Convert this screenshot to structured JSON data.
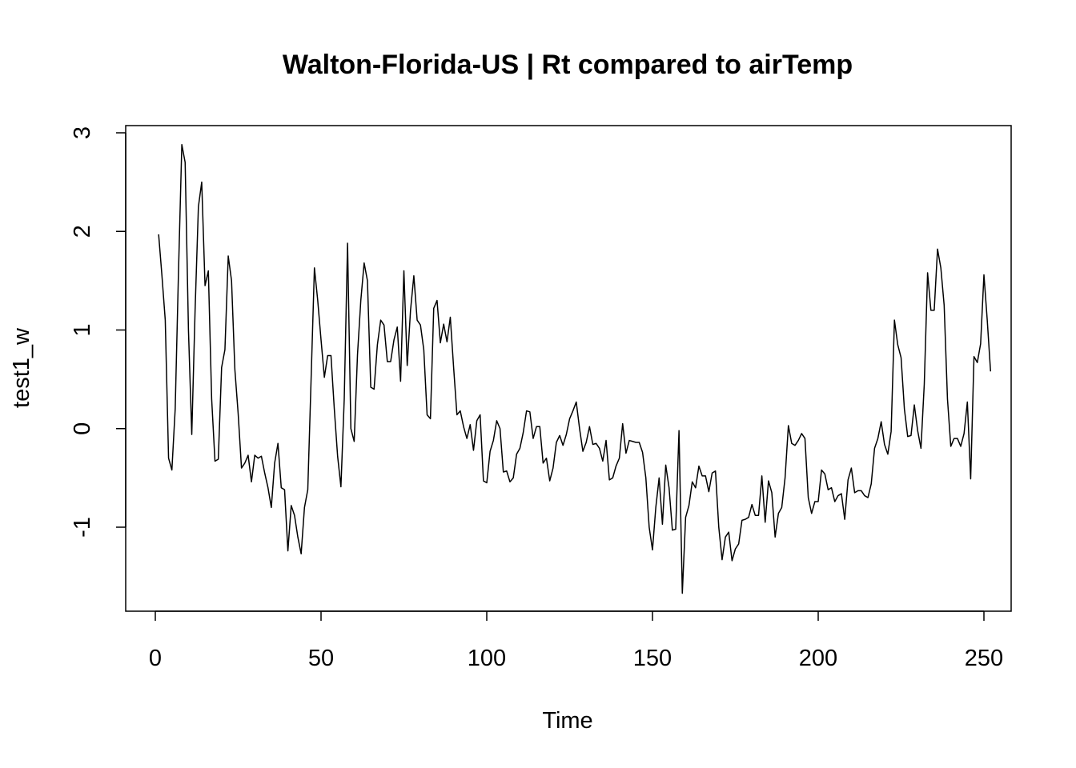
{
  "chart_data": {
    "type": "line",
    "title": "Walton-Florida-US | Rt compared to airTemp",
    "xlabel": "Time",
    "ylabel": "test1_w",
    "xlim": [
      1,
      248
    ],
    "ylim": [
      -1.65,
      2.9
    ],
    "x_ticks": [
      0,
      50,
      100,
      150,
      200,
      250
    ],
    "x_tick_labels": [
      "0",
      "50",
      "100",
      "150",
      "200",
      "250"
    ],
    "y_ticks": [
      -1,
      0,
      1,
      2,
      3
    ],
    "y_tick_labels": [
      "-1",
      "0",
      "1",
      "2",
      "3"
    ],
    "grid": false,
    "legend": "none",
    "line_color": "#000000",
    "series": [
      {
        "x_start": 1,
        "x_step": 1,
        "values": [
          1.97,
          1.55,
          1.1,
          -0.3,
          -0.42,
          0.2,
          1.6,
          2.88,
          2.7,
          1.0,
          -0.06,
          1.2,
          2.25,
          2.5,
          1.45,
          1.6,
          0.3,
          -0.33,
          -0.31,
          0.62,
          0.8,
          1.75,
          1.5,
          0.6,
          0.15,
          -0.4,
          -0.35,
          -0.27,
          -0.54,
          -0.27,
          -0.3,
          -0.28,
          -0.45,
          -0.6,
          -0.8,
          -0.35,
          -0.15,
          -0.6,
          -0.62,
          -1.24,
          -0.78,
          -0.88,
          -1.1,
          -1.27,
          -0.8,
          -0.62,
          0.5,
          1.63,
          1.3,
          0.9,
          0.52,
          0.74,
          0.74,
          0.2,
          -0.28,
          -0.59,
          0.3,
          1.88,
          0.0,
          -0.13,
          0.75,
          1.3,
          1.68,
          1.5,
          0.42,
          0.4,
          0.85,
          1.1,
          1.05,
          0.68,
          0.68,
          0.9,
          1.03,
          0.48,
          1.6,
          0.64,
          1.2,
          1.55,
          1.1,
          1.05,
          0.8,
          0.14,
          0.1,
          1.22,
          1.3,
          0.87,
          1.06,
          0.88,
          1.13,
          0.62,
          0.14,
          0.18,
          0.02,
          -0.1,
          0.04,
          -0.22,
          0.08,
          0.14,
          -0.53,
          -0.55,
          -0.23,
          -0.12,
          0.08,
          0.0,
          -0.44,
          -0.43,
          -0.54,
          -0.5,
          -0.26,
          -0.2,
          -0.04,
          0.18,
          0.17,
          -0.1,
          0.02,
          0.02,
          -0.35,
          -0.3,
          -0.53,
          -0.4,
          -0.14,
          -0.07,
          -0.17,
          -0.06,
          0.1,
          0.18,
          0.27,
          0.0,
          -0.23,
          -0.14,
          0.02,
          -0.16,
          -0.15,
          -0.2,
          -0.33,
          -0.12,
          -0.52,
          -0.5,
          -0.38,
          -0.3,
          0.05,
          -0.25,
          -0.12,
          -0.13,
          -0.14,
          -0.14,
          -0.24,
          -0.5,
          -1.0,
          -1.23,
          -0.8,
          -0.5,
          -0.97,
          -0.37,
          -0.6,
          -1.03,
          -1.02,
          -0.02,
          -1.67,
          -0.9,
          -0.78,
          -0.54,
          -0.6,
          -0.38,
          -0.48,
          -0.48,
          -0.64,
          -0.45,
          -0.43,
          -1.0,
          -1.33,
          -1.1,
          -1.05,
          -1.34,
          -1.22,
          -1.17,
          -0.93,
          -0.92,
          -0.9,
          -0.77,
          -0.88,
          -0.88,
          -0.48,
          -0.95,
          -0.53,
          -0.65,
          -1.1,
          -0.86,
          -0.8,
          -0.5,
          0.03,
          -0.15,
          -0.17,
          -0.12,
          -0.05,
          -0.1,
          -0.7,
          -0.86,
          -0.74,
          -0.74,
          -0.42,
          -0.46,
          -0.62,
          -0.6,
          -0.74,
          -0.68,
          -0.66,
          -0.92,
          -0.52,
          -0.4,
          -0.65,
          -0.63,
          -0.63,
          -0.68,
          -0.7,
          -0.56,
          -0.2,
          -0.1,
          0.07,
          -0.16,
          -0.26,
          -0.03,
          1.1,
          0.85,
          0.72,
          0.2,
          -0.08,
          -0.07,
          0.24,
          -0.02,
          -0.2,
          0.45,
          1.58,
          1.2,
          1.2,
          1.82,
          1.63,
          1.25,
          0.3,
          -0.18,
          -0.1,
          -0.1,
          -0.18,
          -0.05,
          0.27,
          -0.51,
          0.73,
          0.67,
          0.86,
          1.56,
          1.1,
          0.58
        ]
      }
    ]
  }
}
